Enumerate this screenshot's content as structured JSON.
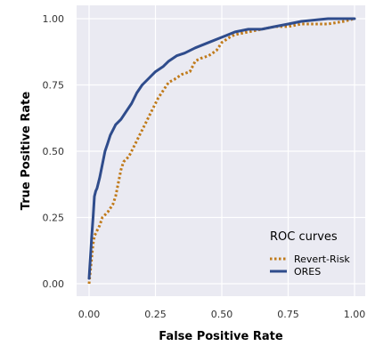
{
  "chart_data": {
    "type": "line",
    "xlabel": "False Positive Rate",
    "ylabel": "True Positive Rate",
    "xlim": [
      0,
      1
    ],
    "ylim": [
      0,
      1
    ],
    "x_ticks": [
      "0.00",
      "0.25",
      "0.50",
      "0.75",
      "1.00"
    ],
    "y_ticks": [
      "0.00",
      "0.25",
      "0.50",
      "0.75",
      "1.00"
    ],
    "grid": true,
    "legend": {
      "title": "ROC curves",
      "placement": "bottom-right"
    },
    "series": [
      {
        "name": "Revert-Risk",
        "color": "#c07a1a",
        "style": "dotted",
        "x": [
          0.0,
          0.005,
          0.01,
          0.015,
          0.02,
          0.03,
          0.04,
          0.05,
          0.07,
          0.09,
          0.1,
          0.11,
          0.12,
          0.13,
          0.15,
          0.17,
          0.19,
          0.2,
          0.22,
          0.24,
          0.26,
          0.28,
          0.3,
          0.32,
          0.35,
          0.38,
          0.4,
          0.42,
          0.45,
          0.48,
          0.5,
          0.53,
          0.55,
          0.6,
          0.65,
          0.7,
          0.75,
          0.8,
          0.9,
          0.96,
          1.0
        ],
        "y": [
          0.0,
          0.05,
          0.1,
          0.15,
          0.18,
          0.2,
          0.22,
          0.25,
          0.27,
          0.3,
          0.33,
          0.38,
          0.43,
          0.46,
          0.48,
          0.52,
          0.56,
          0.58,
          0.62,
          0.66,
          0.7,
          0.73,
          0.76,
          0.77,
          0.79,
          0.8,
          0.84,
          0.85,
          0.86,
          0.88,
          0.91,
          0.93,
          0.94,
          0.95,
          0.96,
          0.97,
          0.97,
          0.98,
          0.98,
          0.99,
          1.0
        ]
      },
      {
        "name": "ORES",
        "color": "#2f4c8c",
        "style": "solid",
        "x": [
          0.0,
          0.005,
          0.01,
          0.015,
          0.02,
          0.025,
          0.03,
          0.04,
          0.05,
          0.06,
          0.07,
          0.08,
          0.09,
          0.1,
          0.12,
          0.14,
          0.16,
          0.18,
          0.2,
          0.22,
          0.25,
          0.28,
          0.3,
          0.33,
          0.36,
          0.4,
          0.45,
          0.5,
          0.55,
          0.6,
          0.65,
          0.7,
          0.75,
          0.8,
          0.9,
          0.97,
          1.0
        ],
        "y": [
          0.02,
          0.1,
          0.18,
          0.25,
          0.33,
          0.35,
          0.36,
          0.4,
          0.45,
          0.5,
          0.53,
          0.56,
          0.58,
          0.6,
          0.62,
          0.65,
          0.68,
          0.72,
          0.75,
          0.77,
          0.8,
          0.82,
          0.84,
          0.86,
          0.87,
          0.89,
          0.91,
          0.93,
          0.95,
          0.96,
          0.96,
          0.97,
          0.98,
          0.99,
          1.0,
          1.0,
          1.0
        ]
      }
    ]
  }
}
